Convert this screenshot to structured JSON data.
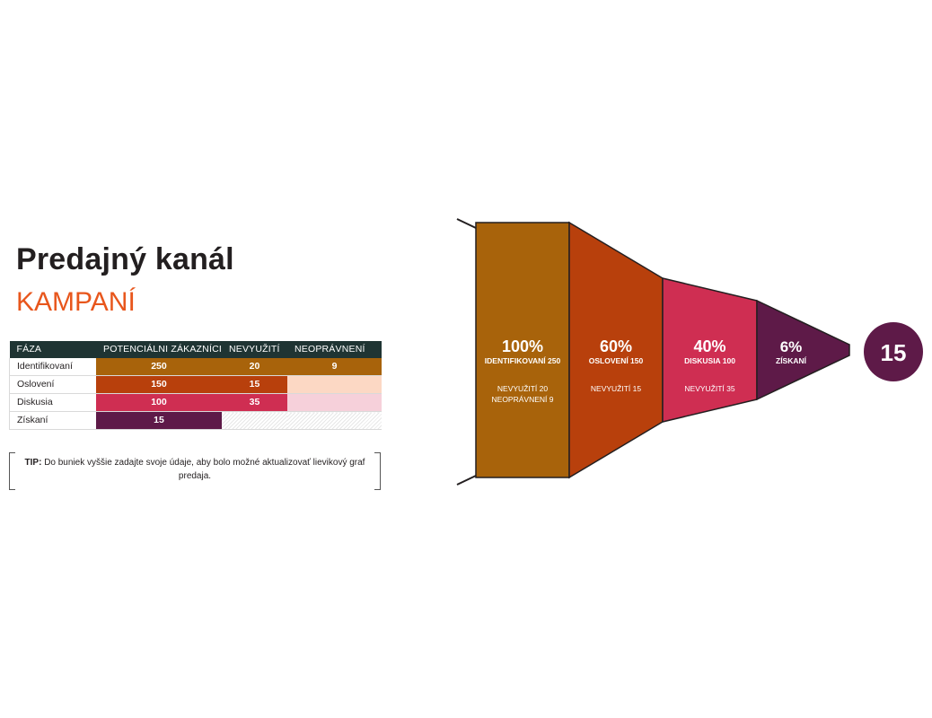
{
  "title": "Predajný kanál",
  "subtitle": "KAMPANÍ",
  "colors": {
    "identified": "#a8630b",
    "reached": "#b8400c",
    "discussion": "#cf2e52",
    "acquired": "#5e1a48",
    "reached_light": "#fcd8c4",
    "discussion_light": "#f6d0da",
    "header": "#1f3433",
    "accent": "#e8561c"
  },
  "table": {
    "headers": [
      "FÁZA",
      "POTENCIÁLNI ZÁKAZNÍCI",
      "NEVYUŽITÍ",
      "NEOPRÁVNENÍ"
    ],
    "rows": [
      {
        "phase": "Identifikovaní",
        "potential": "250",
        "unused": "20",
        "ineligible": "9"
      },
      {
        "phase": "Oslovení",
        "potential": "150",
        "unused": "15",
        "ineligible": ""
      },
      {
        "phase": "Diskusia",
        "potential": "100",
        "unused": "35",
        "ineligible": ""
      },
      {
        "phase": "Získaní",
        "potential": "15",
        "unused": "",
        "ineligible": ""
      }
    ]
  },
  "tip": {
    "label": "TIP:",
    "text": "Do buniek vyššie zadajte svoje údaje, aby bolo možné aktualizovať lievikový graf predaja."
  },
  "chart_data": {
    "type": "funnel",
    "stages": [
      {
        "percent": "100%",
        "label": "IDENTIFIKOVANÍ 250",
        "value": 250,
        "notes": [
          "NEVYUŽITÍ 20",
          "NEOPRÁVNENÍ 9"
        ]
      },
      {
        "percent": "60%",
        "label": "OSLOVENÍ 150",
        "value": 150,
        "notes": [
          "NEVYUŽITÍ 15"
        ]
      },
      {
        "percent": "40%",
        "label": "DISKUSIA 100",
        "value": 100,
        "notes": [
          "NEVYUŽITÍ 35"
        ]
      },
      {
        "percent": "6%",
        "label": "ZÍSKANÍ",
        "value": 15,
        "notes": []
      }
    ],
    "result": "15"
  }
}
